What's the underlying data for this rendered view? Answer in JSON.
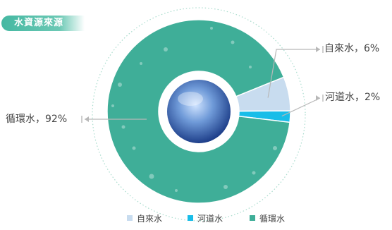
{
  "header": {
    "title": "水資源來源"
  },
  "chart_data": {
    "type": "pie",
    "title": "水資源來源",
    "categories": [
      "自來水",
      "河道水",
      "循環水"
    ],
    "values": [
      6,
      2,
      92
    ],
    "unit": "%",
    "colors": [
      "#c8dcef",
      "#19bde8",
      "#3fae98"
    ],
    "legend_position": "bottom",
    "labels": [
      "自來水，6%",
      "河道水，2%",
      "循環水，92%"
    ]
  }
}
